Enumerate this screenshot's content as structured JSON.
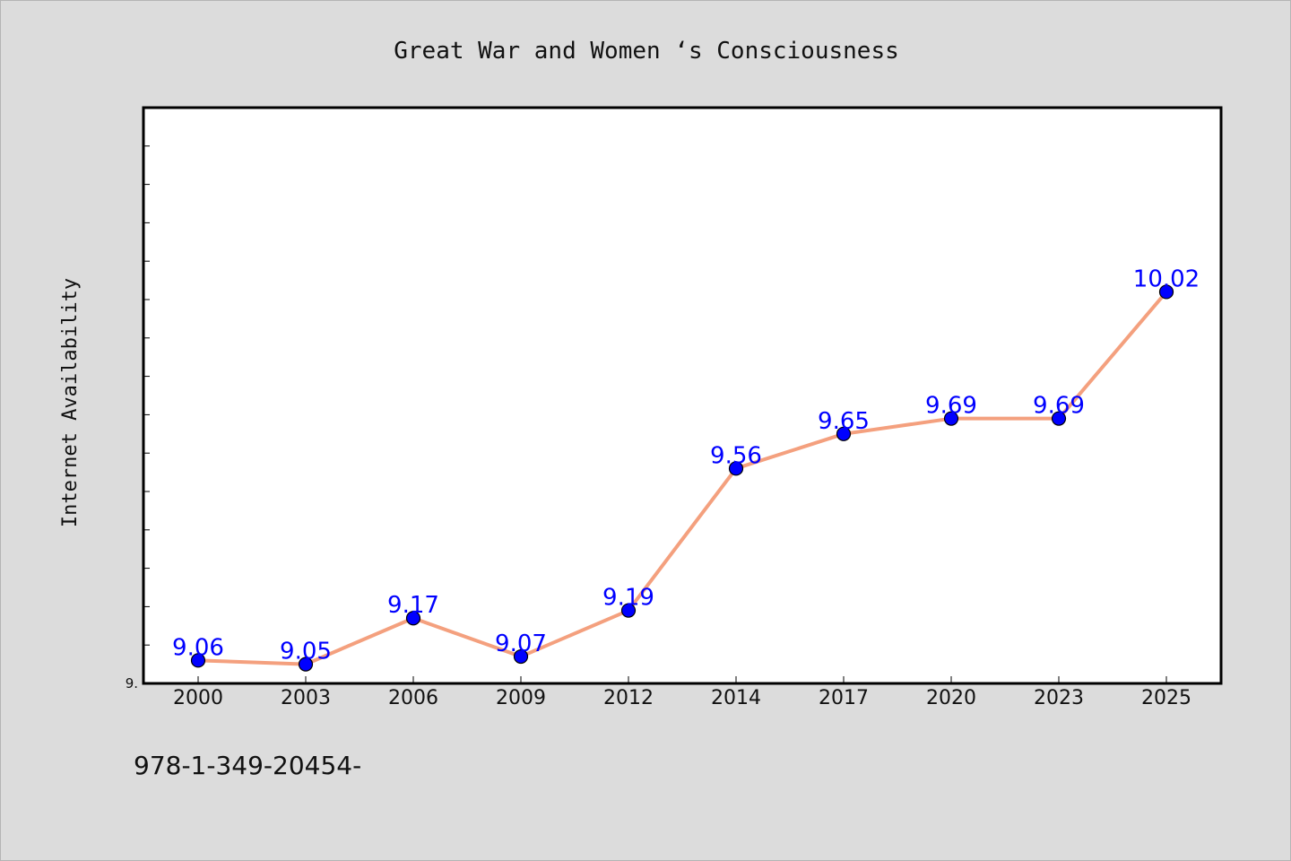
{
  "chart_data": {
    "type": "line",
    "title": "Great War and Women ‘s Consciousness",
    "xlabel": "",
    "ylabel": "Internet Availability",
    "categories": [
      "2000",
      "2003",
      "2006",
      "2009",
      "2012",
      "2014",
      "2017",
      "2020",
      "2023",
      "2025"
    ],
    "values": [
      9.06,
      9.05,
      9.17,
      9.07,
      9.19,
      9.56,
      9.65,
      9.69,
      9.69,
      10.02
    ],
    "data_labels": [
      "9.06",
      "9.05",
      "9.17",
      "9.07",
      "9.19",
      "9.56",
      "9.65",
      "9.69",
      "9.69",
      "10.02"
    ],
    "ylim": [
      9.0,
      10.5
    ],
    "y_tick_labels": [
      {
        "value": 9.0,
        "label": "9."
      }
    ],
    "y_minor_tick_step": 0.1,
    "grid": false,
    "legend": "none",
    "line_color": "#f4a07e",
    "marker_color": "#0000ff",
    "label_color": "#0000ff"
  },
  "footnote": "978-1-349-20454-"
}
